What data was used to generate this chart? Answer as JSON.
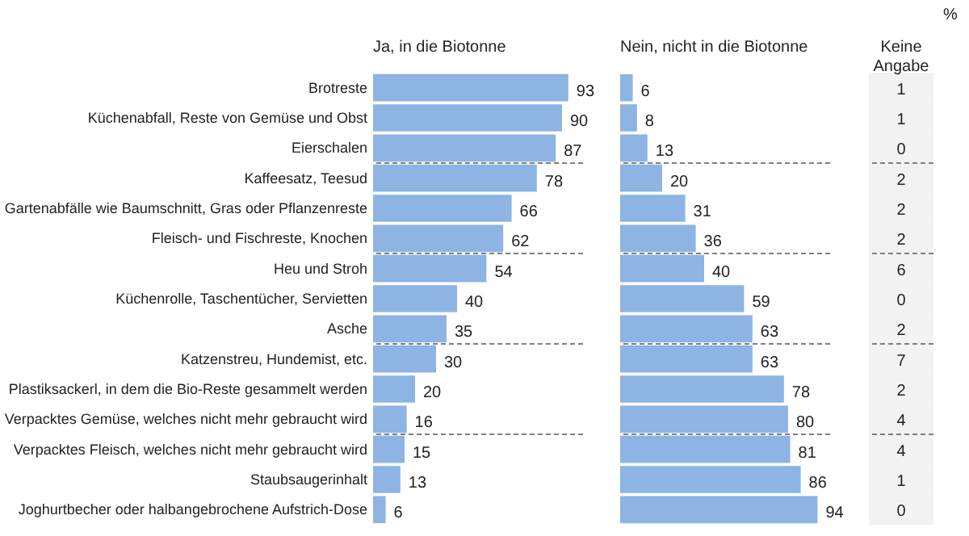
{
  "chart_data": [
    {
      "type": "bar",
      "orientation": "horizontal",
      "title": "Ja, in die Biotonne",
      "tick_labels": "y",
      "data_labels": true,
      "color": "#8db4e2",
      "xlim": [
        0,
        100
      ],
      "categories": [
        "Brotreste",
        "Küchenabfall, Reste von Gemüse und Obst",
        "Eierschalen",
        "Kaffeesatz, Teesud",
        "Gartenabfälle wie Baumschnitt, Gras oder Pflanzenreste",
        "Fleisch- und Fischreste, Knochen",
        "Heu und Stroh",
        "Küchenrolle, Taschentücher, Servietten",
        "Asche",
        "Katzenstreu, Hundemist, etc.",
        "Plastiksackerl, in dem die Bio-Reste gesammelt werden",
        "Verpacktes Gemüse, welches nicht mehr gebraucht wird",
        "Verpacktes Fleisch, welches nicht mehr gebraucht wird",
        "Staubsaugerinhalt",
        "Joghurtbecher oder halbangebrochene Aufstrich-Dose"
      ],
      "values": [
        93,
        90,
        87,
        78,
        66,
        62,
        54,
        40,
        35,
        30,
        20,
        16,
        15,
        13,
        6
      ]
    },
    {
      "type": "bar",
      "orientation": "horizontal",
      "title": "Nein, nicht in die Biotonne",
      "tick_labels": false,
      "data_labels": true,
      "color": "#8db4e2",
      "xlim": [
        0,
        100
      ],
      "values": [
        6,
        8,
        13,
        20,
        31,
        36,
        40,
        59,
        63,
        63,
        78,
        80,
        81,
        86,
        94
      ]
    },
    {
      "type": "other",
      "title": "Keine Angabe",
      "data_labels": true,
      "color": "#f2f2f2",
      "annotations": [
        "%"
      ],
      "values": [
        1,
        1,
        0,
        2,
        2,
        2,
        6,
        0,
        2,
        7,
        2,
        4,
        4,
        1,
        0
      ]
    }
  ]
}
